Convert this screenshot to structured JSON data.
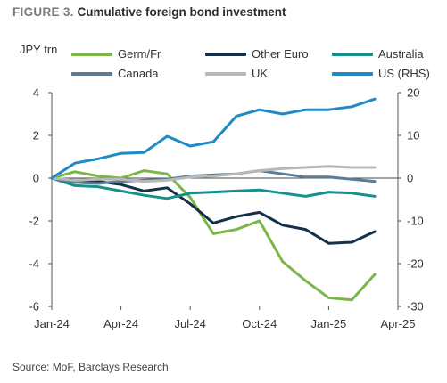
{
  "figure": {
    "label": "FIGURE 3.",
    "title": "Cumulative foreign bond investment",
    "source": "Source: MoF, Barclays Research"
  },
  "chart_data": {
    "type": "line",
    "left_axis_label": "JPY trn",
    "x_tick_labels": [
      "Jan-24",
      "Apr-24",
      "Jul-24",
      "Oct-24",
      "Jan-25",
      "Apr-25"
    ],
    "x_tick_months": [
      0,
      3,
      6,
      9,
      12,
      15
    ],
    "xlim_months": [
      0,
      15
    ],
    "ylim_left": [
      -6,
      4
    ],
    "y_ticks_left": [
      4,
      2,
      0,
      -2,
      -4,
      -6
    ],
    "ylim_right": [
      -30,
      20
    ],
    "y_ticks_right": [
      20,
      10,
      0,
      -10,
      -20,
      -30
    ],
    "grid": false,
    "zero_line": true,
    "legend_position": "top",
    "x_months": [
      0,
      1,
      2,
      3,
      4,
      5,
      6,
      7,
      8,
      9,
      10,
      11,
      12,
      13,
      14
    ],
    "series": [
      {
        "name": "Germ/Fr",
        "axis": "left",
        "color": "#7ab648",
        "values": [
          0,
          0.3,
          0.1,
          0.0,
          0.35,
          0.2,
          -0.9,
          -2.6,
          -2.4,
          -2.0,
          -3.9,
          -4.8,
          -5.6,
          -5.7,
          -4.5
        ]
      },
      {
        "name": "Other Euro",
        "axis": "left",
        "color": "#15304a",
        "values": [
          0,
          -0.2,
          -0.15,
          -0.3,
          -0.6,
          -0.45,
          -1.2,
          -2.1,
          -1.8,
          -1.6,
          -2.2,
          -2.4,
          -3.05,
          -3.0,
          -2.5
        ]
      },
      {
        "name": "Australia",
        "axis": "left",
        "color": "#16918a",
        "values": [
          0,
          -0.35,
          -0.4,
          -0.6,
          -0.8,
          -0.95,
          -0.7,
          -0.65,
          -0.6,
          -0.55,
          -0.7,
          -0.85,
          -0.65,
          -0.7,
          -0.85
        ]
      },
      {
        "name": "Canada",
        "axis": "left",
        "color": "#5b7d93",
        "values": [
          0,
          -0.2,
          -0.25,
          -0.15,
          -0.1,
          -0.05,
          0.1,
          0.15,
          0.2,
          0.35,
          0.2,
          0.05,
          0.05,
          -0.05,
          -0.15
        ]
      },
      {
        "name": "UK",
        "axis": "left",
        "color": "#b8b8b8",
        "values": [
          0,
          -0.1,
          -0.05,
          -0.05,
          -0.15,
          -0.1,
          0.05,
          0.1,
          0.2,
          0.35,
          0.45,
          0.5,
          0.55,
          0.5,
          0.5
        ]
      },
      {
        "name": "US (RHS)",
        "axis": "right",
        "color": "#1f8ac4",
        "values": [
          0,
          3.5,
          4.5,
          5.8,
          6.0,
          9.8,
          7.5,
          8.5,
          14.5,
          16.0,
          15.0,
          16.0,
          16.0,
          16.7,
          18.5
        ]
      }
    ]
  }
}
